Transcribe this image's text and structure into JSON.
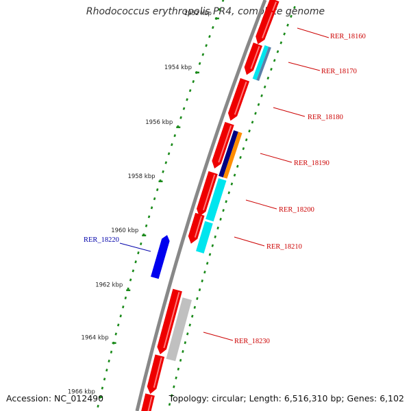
{
  "title": "Rhodococcus erythropolis PR4, complete genome",
  "accession": "Accession: NC_012490",
  "topology": "Topology: circular; Length: 6,516,310 bp; Genes: 6,102",
  "colors": {
    "backbone": "#888888",
    "tick": "#1a8a1a",
    "forward_label": "#cc0000",
    "reverse_label": "#0000aa"
  },
  "scale_labels": [
    "1952 kbp",
    "1954 kbp",
    "1956 kbp",
    "1958 kbp",
    "1960 kbp",
    "1962 kbp",
    "1964 kbp",
    "1966 kbp"
  ],
  "gene_labels": [
    {
      "text": "RER_18160",
      "strand": "forward"
    },
    {
      "text": "RER_18170",
      "strand": "forward"
    },
    {
      "text": "RER_18180",
      "strand": "forward"
    },
    {
      "text": "RER_18190",
      "strand": "forward"
    },
    {
      "text": "RER_18200",
      "strand": "forward"
    },
    {
      "text": "RER_18210",
      "strand": "forward"
    },
    {
      "text": "RER_18230",
      "strand": "forward"
    },
    {
      "text": "RER_18220",
      "strand": "reverse"
    }
  ],
  "feature_colors": {
    "cds": "#ee0000",
    "reverse_gene": "#0000ee",
    "cyan": "#00e5ee",
    "navy": "#000080",
    "orange": "#ff8c00",
    "steel": "#5a7fa8",
    "gray": "#c0c0c0"
  }
}
